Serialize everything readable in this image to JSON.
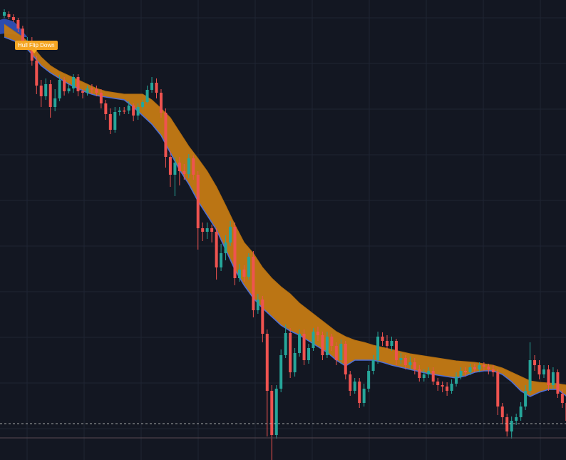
{
  "chart_data": {
    "type": "candlestick",
    "title": "",
    "xlabel": "",
    "ylabel": "",
    "ylim": [
      0,
      645
    ],
    "grid": true,
    "legend": "none",
    "colors": {
      "background": "#131722",
      "grid": "#1f2433",
      "up": "#26a69a",
      "down": "#ef5350",
      "band_fill_down": "#c47a14",
      "band_fill_up": "#2f4fb5",
      "band_edge": "#4f6fd6",
      "label_bg": "#f5a623",
      "label_text": "#ffffff",
      "dashed_line": "#c8c8c8",
      "bottom_line": "#5a4a52"
    },
    "dashed_level": 594,
    "bottom_level": 614,
    "candles": [
      [
        0,
        22,
        17,
        25,
        13
      ],
      [
        1,
        20,
        24,
        27,
        16
      ],
      [
        2,
        24,
        28,
        31,
        20
      ],
      [
        3,
        28,
        40,
        45,
        25
      ],
      [
        4,
        40,
        60,
        66,
        36
      ],
      [
        5,
        60,
        58,
        64,
        52
      ],
      [
        6,
        58,
        85,
        92,
        52
      ],
      [
        7,
        85,
        120,
        132,
        78
      ],
      [
        8,
        120,
        135,
        150,
        112
      ],
      [
        9,
        135,
        118,
        140,
        110
      ],
      [
        10,
        118,
        150,
        165,
        112
      ],
      [
        11,
        150,
        138,
        156,
        125
      ],
      [
        12,
        138,
        112,
        142,
        105
      ],
      [
        13,
        112,
        128,
        134,
        108
      ],
      [
        14,
        128,
        124,
        131,
        118
      ],
      [
        15,
        124,
        108,
        130,
        104
      ],
      [
        16,
        108,
        128,
        135,
        104
      ],
      [
        17,
        128,
        130,
        138,
        125
      ],
      [
        18,
        130,
        124,
        134,
        120
      ],
      [
        19,
        124,
        125,
        132,
        118
      ],
      [
        20,
        125,
        130,
        135,
        120
      ],
      [
        21,
        130,
        145,
        152,
        125
      ],
      [
        22,
        145,
        160,
        168,
        140
      ],
      [
        23,
        160,
        182,
        188,
        152
      ],
      [
        24,
        182,
        157,
        186,
        150
      ],
      [
        25,
        157,
        155,
        162,
        150
      ],
      [
        26,
        155,
        155,
        160,
        150
      ],
      [
        27,
        155,
        148,
        160,
        142
      ],
      [
        28,
        148,
        162,
        170,
        145
      ],
      [
        29,
        162,
        150,
        168,
        145
      ],
      [
        30,
        150,
        143,
        153,
        140
      ],
      [
        31,
        143,
        126,
        145,
        120
      ],
      [
        32,
        126,
        116,
        130,
        108
      ],
      [
        33,
        116,
        130,
        138,
        110
      ],
      [
        34,
        130,
        158,
        165,
        125
      ],
      [
        35,
        158,
        220,
        235,
        152
      ],
      [
        36,
        220,
        245,
        262,
        212
      ],
      [
        37,
        245,
        228,
        275,
        220
      ],
      [
        38,
        228,
        240,
        260,
        220
      ],
      [
        39,
        240,
        244,
        252,
        230
      ],
      [
        40,
        244,
        222,
        250,
        216
      ],
      [
        41,
        222,
        245,
        252,
        218
      ],
      [
        42,
        245,
        320,
        350,
        240
      ],
      [
        43,
        320,
        325,
        338,
        312
      ],
      [
        44,
        325,
        320,
        335,
        312
      ],
      [
        45,
        320,
        325,
        340,
        315
      ],
      [
        46,
        325,
        375,
        392,
        320
      ],
      [
        47,
        375,
        355,
        380,
        342
      ],
      [
        48,
        355,
        340,
        365,
        330
      ],
      [
        49,
        340,
        318,
        345,
        310
      ],
      [
        50,
        318,
        390,
        400,
        312
      ],
      [
        51,
        390,
        378,
        395,
        370
      ],
      [
        52,
        378,
        388,
        395,
        372
      ],
      [
        53,
        388,
        360,
        392,
        355
      ],
      [
        54,
        360,
        435,
        445,
        352
      ],
      [
        55,
        435,
        420,
        440,
        412
      ],
      [
        56,
        420,
        468,
        480,
        415
      ],
      [
        57,
        468,
        548,
        612,
        462
      ],
      [
        58,
        548,
        610,
        645,
        540
      ],
      [
        59,
        610,
        545,
        615,
        540
      ],
      [
        60,
        545,
        498,
        550,
        490
      ],
      [
        61,
        498,
        467,
        502,
        455
      ],
      [
        62,
        467,
        522,
        530,
        460
      ],
      [
        63,
        522,
        495,
        528,
        488
      ],
      [
        64,
        495,
        468,
        500,
        462
      ],
      [
        65,
        468,
        505,
        512,
        462
      ],
      [
        66,
        505,
        488,
        510,
        482
      ],
      [
        67,
        488,
        465,
        492,
        460
      ],
      [
        68,
        465,
        470,
        478,
        458
      ],
      [
        69,
        470,
        498,
        505,
        465
      ],
      [
        70,
        498,
        472,
        502,
        465
      ],
      [
        71,
        472,
        485,
        492,
        468
      ],
      [
        72,
        485,
        505,
        512,
        480
      ],
      [
        73,
        505,
        482,
        510,
        476
      ],
      [
        74,
        482,
        525,
        532,
        478
      ],
      [
        75,
        525,
        548,
        555,
        520
      ],
      [
        76,
        548,
        535,
        552,
        530
      ],
      [
        77,
        535,
        565,
        572,
        530
      ],
      [
        78,
        565,
        545,
        570,
        538
      ],
      [
        79,
        545,
        520,
        550,
        512
      ],
      [
        80,
        520,
        505,
        525,
        498
      ],
      [
        81,
        505,
        472,
        510,
        465
      ],
      [
        82,
        472,
        478,
        485,
        466
      ],
      [
        83,
        478,
        485,
        490,
        470
      ],
      [
        84,
        485,
        478,
        492,
        472
      ],
      [
        85,
        478,
        505,
        512,
        475
      ],
      [
        86,
        505,
        502,
        510,
        495
      ],
      [
        87,
        502,
        512,
        518,
        498
      ],
      [
        88,
        512,
        508,
        518,
        500
      ],
      [
        89,
        508,
        518,
        525,
        502
      ],
      [
        90,
        518,
        530,
        535,
        512
      ],
      [
        91,
        530,
        525,
        535,
        518
      ],
      [
        92,
        525,
        520,
        530,
        515
      ],
      [
        93,
        520,
        535,
        540,
        515
      ],
      [
        94,
        535,
        540,
        548,
        530
      ],
      [
        95,
        540,
        542,
        550,
        535
      ],
      [
        96,
        542,
        548,
        555,
        536
      ],
      [
        97,
        548,
        538,
        552,
        532
      ],
      [
        98,
        538,
        528,
        542,
        522
      ],
      [
        99,
        528,
        520,
        532,
        515
      ],
      [
        100,
        520,
        522,
        528,
        515
      ],
      [
        101,
        522,
        515,
        526,
        510
      ],
      [
        102,
        515,
        518,
        522,
        510
      ],
      [
        103,
        518,
        512,
        522,
        508
      ],
      [
        104,
        512,
        514,
        520,
        508
      ],
      [
        105,
        514,
        518,
        525,
        510
      ],
      [
        106,
        518,
        522,
        528,
        512
      ],
      [
        107,
        522,
        570,
        582,
        518
      ],
      [
        108,
        570,
        585,
        595,
        565
      ],
      [
        109,
        585,
        605,
        612,
        580
      ],
      [
        110,
        605,
        590,
        615,
        584
      ],
      [
        111,
        590,
        585,
        596,
        580
      ],
      [
        112,
        585,
        570,
        590,
        564
      ],
      [
        113,
        570,
        548,
        575,
        540
      ],
      [
        114,
        548,
        505,
        552,
        480
      ],
      [
        115,
        505,
        512,
        520,
        498
      ],
      [
        116,
        512,
        525,
        532,
        505
      ],
      [
        117,
        525,
        518,
        530,
        512
      ],
      [
        118,
        518,
        540,
        548,
        512
      ],
      [
        119,
        540,
        522,
        545,
        515
      ],
      [
        120,
        522,
        552,
        558,
        518
      ],
      [
        121,
        552,
        565,
        572,
        546
      ],
      [
        122,
        565,
        590,
        602,
        560
      ]
    ],
    "band_fast": [
      [
        0,
        34
      ],
      [
        4,
        52
      ],
      [
        6,
        64
      ],
      [
        8,
        80
      ],
      [
        10,
        92
      ],
      [
        12,
        100
      ],
      [
        14,
        106
      ],
      [
        16,
        112
      ],
      [
        18,
        118
      ],
      [
        20,
        124
      ],
      [
        22,
        128
      ],
      [
        24,
        130
      ],
      [
        26,
        132
      ],
      [
        28,
        132
      ],
      [
        30,
        132
      ],
      [
        32,
        140
      ],
      [
        34,
        152
      ],
      [
        36,
        165
      ],
      [
        38,
        185
      ],
      [
        40,
        205
      ],
      [
        42,
        222
      ],
      [
        44,
        240
      ],
      [
        46,
        262
      ],
      [
        48,
        288
      ],
      [
        50,
        315
      ],
      [
        52,
        340
      ],
      [
        54,
        355
      ],
      [
        56,
        375
      ],
      [
        58,
        390
      ],
      [
        60,
        402
      ],
      [
        62,
        412
      ],
      [
        64,
        425
      ],
      [
        66,
        435
      ],
      [
        68,
        445
      ],
      [
        70,
        455
      ],
      [
        72,
        465
      ],
      [
        74,
        472
      ],
      [
        76,
        477
      ],
      [
        78,
        480
      ],
      [
        80,
        484
      ],
      [
        82,
        487
      ],
      [
        84,
        490
      ],
      [
        86,
        493
      ],
      [
        88,
        496
      ],
      [
        90,
        498
      ],
      [
        92,
        500
      ],
      [
        94,
        502
      ],
      [
        96,
        504
      ],
      [
        98,
        506
      ],
      [
        100,
        507
      ],
      [
        102,
        508
      ],
      [
        104,
        510
      ],
      [
        106,
        512
      ],
      [
        108,
        516
      ],
      [
        110,
        522
      ],
      [
        112,
        528
      ],
      [
        114,
        534
      ],
      [
        116,
        536
      ],
      [
        118,
        537
      ],
      [
        120,
        538
      ],
      [
        122,
        540
      ]
    ],
    "band_slow": [
      [
        0,
        52
      ],
      [
        4,
        62
      ],
      [
        6,
        76
      ],
      [
        8,
        92
      ],
      [
        10,
        102
      ],
      [
        12,
        110
      ],
      [
        14,
        118
      ],
      [
        16,
        124
      ],
      [
        18,
        130
      ],
      [
        20,
        134
      ],
      [
        22,
        136
      ],
      [
        24,
        138
      ],
      [
        26,
        140
      ],
      [
        28,
        150
      ],
      [
        30,
        162
      ],
      [
        32,
        174
      ],
      [
        34,
        190
      ],
      [
        36,
        214
      ],
      [
        38,
        238
      ],
      [
        40,
        258
      ],
      [
        42,
        282
      ],
      [
        44,
        302
      ],
      [
        46,
        322
      ],
      [
        48,
        350
      ],
      [
        50,
        378
      ],
      [
        52,
        400
      ],
      [
        54,
        418
      ],
      [
        56,
        432
      ],
      [
        58,
        444
      ],
      [
        60,
        456
      ],
      [
        62,
        464
      ],
      [
        64,
        470
      ],
      [
        66,
        478
      ],
      [
        68,
        486
      ],
      [
        70,
        494
      ],
      [
        72,
        505
      ],
      [
        74,
        513
      ],
      [
        76,
        505
      ],
      [
        78,
        505
      ],
      [
        80,
        505
      ],
      [
        82,
        508
      ],
      [
        84,
        512
      ],
      [
        86,
        515
      ],
      [
        88,
        518
      ],
      [
        90,
        521
      ],
      [
        92,
        524
      ],
      [
        94,
        526
      ],
      [
        96,
        528
      ],
      [
        98,
        530
      ],
      [
        100,
        527
      ],
      [
        102,
        522
      ],
      [
        104,
        520
      ],
      [
        106,
        520
      ],
      [
        108,
        525
      ],
      [
        110,
        535
      ],
      [
        112,
        548
      ],
      [
        114,
        556
      ],
      [
        116,
        550
      ],
      [
        118,
        546
      ],
      [
        120,
        546
      ],
      [
        122,
        556
      ]
    ],
    "band_early_up": [
      [
        -1,
        28
      ],
      [
        0,
        26
      ],
      [
        1,
        28
      ],
      [
        2,
        30
      ],
      [
        3,
        36
      ],
      [
        4,
        44
      ],
      [
        5,
        52
      ]
    ],
    "band_early_up_low": [
      [
        -1,
        48
      ],
      [
        0,
        47
      ],
      [
        1,
        48
      ],
      [
        2,
        48
      ],
      [
        3,
        50
      ],
      [
        4,
        52
      ],
      [
        5,
        52
      ]
    ],
    "x_spacing": 6.47,
    "x_offset": 6
  },
  "annotation": {
    "label": "Hull Flip Down"
  }
}
